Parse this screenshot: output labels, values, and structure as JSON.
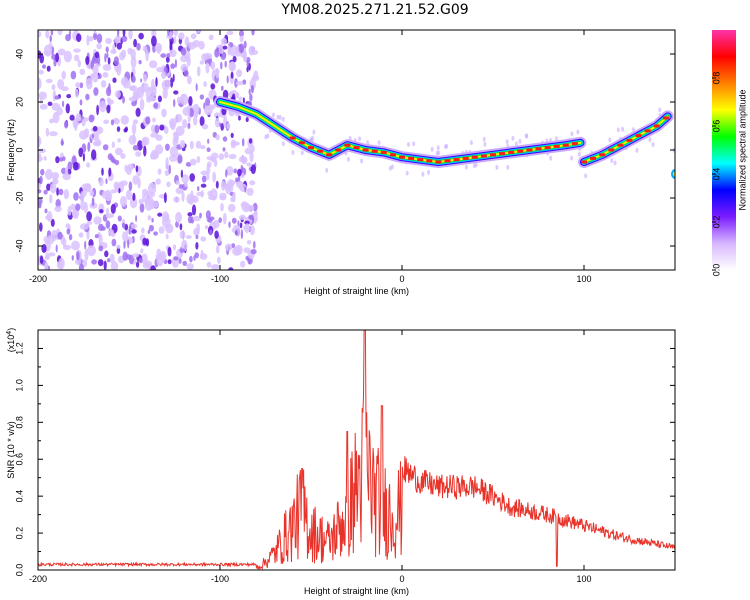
{
  "title": "YM08.2025.271.21.52.G09",
  "colors": {
    "snr_line": "#e8332a",
    "spectro_noise": "#6a1fd6",
    "colorbar_stops": [
      "#ffffff",
      "#d7b6ff",
      "#7a1cff",
      "#0000ff",
      "#00ffff",
      "#00ff00",
      "#ffff00",
      "#ff7f00",
      "#ff0000",
      "#ff33aa"
    ]
  },
  "chart_data": [
    {
      "type": "heatmap",
      "name": "spectrogram",
      "xlabel": "Height of straight line (km)",
      "ylabel": "Frequency (Hz)",
      "xlim": [
        -200,
        150
      ],
      "ylim": [
        -50,
        50
      ],
      "xticks": [
        -200,
        -100,
        0,
        100
      ],
      "yticks": [
        -40,
        -20,
        0,
        20,
        40
      ],
      "noise_region_x": [
        -200,
        -80
      ],
      "signal_track": {
        "x": [
          -100,
          -90,
          -80,
          -70,
          -60,
          -50,
          -40,
          -30,
          -20,
          -10,
          0,
          10,
          20,
          30,
          40,
          50,
          60,
          70,
          80,
          90,
          98,
          100,
          110,
          120,
          130,
          140,
          146
        ],
        "freq": [
          20,
          18,
          15,
          10,
          5,
          1,
          -2,
          2,
          0,
          -1,
          -3,
          -4,
          -5,
          -4,
          -3,
          -2,
          -1,
          0,
          1,
          2,
          3,
          -5,
          -2,
          2,
          6,
          10,
          14
        ]
      },
      "colorbar": {
        "label": "Normalized spectral amplitude",
        "range": [
          0,
          1
        ],
        "ticks": [
          "0.0",
          "0.2",
          "0.4",
          "0.6",
          "0.8"
        ]
      }
    },
    {
      "type": "line",
      "name": "snr",
      "xlabel": "Height of straight line (km)",
      "ylabel": "SNR (10 * v/v)",
      "scale_label": "(x10",
      "scale_exp": "4",
      "xlim": [
        -200,
        150
      ],
      "ylim": [
        0,
        1.3
      ],
      "xticks": [
        -200,
        -100,
        0,
        100
      ],
      "yticks": [
        "0.0",
        "0.2",
        "0.4",
        "0.6",
        "0.8",
        "1.0",
        "1.2"
      ],
      "envelope": {
        "x": [
          -200,
          -100,
          -78,
          -70,
          -60,
          -55,
          -50,
          -40,
          -30,
          -25,
          -20,
          -15,
          -10,
          -5,
          0,
          10,
          20,
          30,
          40,
          50,
          60,
          80,
          100,
          120,
          150
        ],
        "y": [
          0.03,
          0.03,
          0.03,
          0.15,
          0.4,
          0.55,
          0.35,
          0.25,
          0.5,
          0.75,
          0.95,
          0.65,
          0.55,
          0.5,
          0.55,
          0.48,
          0.45,
          0.45,
          0.45,
          0.4,
          0.34,
          0.3,
          0.24,
          0.18,
          0.12
        ]
      },
      "peaks": [
        {
          "x": -20.5,
          "y": 1.3
        },
        {
          "x": -11,
          "y": 0.89
        },
        {
          "x": -30,
          "y": 0.75
        },
        {
          "x": -55,
          "y": 0.55
        },
        {
          "x": 85,
          "y": 0.02
        }
      ]
    }
  ]
}
